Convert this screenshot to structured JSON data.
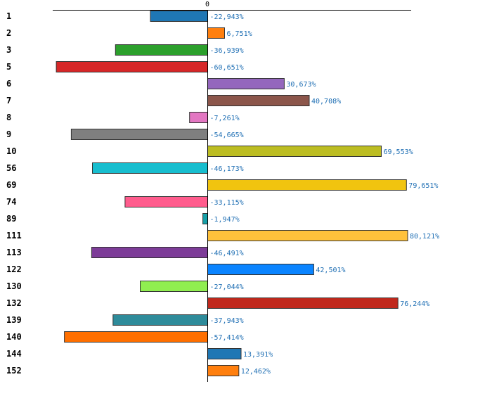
{
  "chart_data": {
    "type": "bar",
    "orientation": "horizontal",
    "title": "",
    "xlabel": "",
    "ylabel": "",
    "zero_label": "0",
    "xlim": [
      -96000,
      131000
    ],
    "grid": false,
    "categories": [
      "1",
      "2",
      "3",
      "5",
      "6",
      "7",
      "8",
      "9",
      "10",
      "56",
      "69",
      "74",
      "89",
      "111",
      "113",
      "122",
      "130",
      "132",
      "139",
      "140",
      "144",
      "152"
    ],
    "values": [
      -22943,
      6751,
      -36939,
      -60651,
      30673,
      40708,
      -7261,
      -54665,
      69553,
      -46173,
      79651,
      -33115,
      -1947,
      80121,
      -46491,
      42501,
      -27044,
      76244,
      -37943,
      -57414,
      13391,
      12462
    ],
    "value_labels": [
      "-22,943%",
      "6,751%",
      "-36,939%",
      "-60,651%",
      "30,673%",
      "40,708%",
      "-7,261%",
      "-54,665%",
      "69,553%",
      "-46,173%",
      "79,651%",
      "-33,115%",
      "-1,947%",
      "80,121%",
      "-46,491%",
      "42,501%",
      "-27,044%",
      "76,244%",
      "-37,943%",
      "-57,414%",
      "13,391%",
      "12,462%"
    ],
    "colors": [
      "#1f77b4",
      "#ff7f0e",
      "#2ca02c",
      "#d62728",
      "#9467bd",
      "#8c564b",
      "#e377c2",
      "#7f7f7f",
      "#bcbd22",
      "#17becf",
      "#f1c40f",
      "#ff5c8d",
      "#16a0a8",
      "#ffc13b",
      "#7d3c98",
      "#0a84ff",
      "#90ee50",
      "#c0281c",
      "#2e8b9a",
      "#ff6f00",
      "#1f77b4",
      "#ff7f0e"
    ]
  }
}
